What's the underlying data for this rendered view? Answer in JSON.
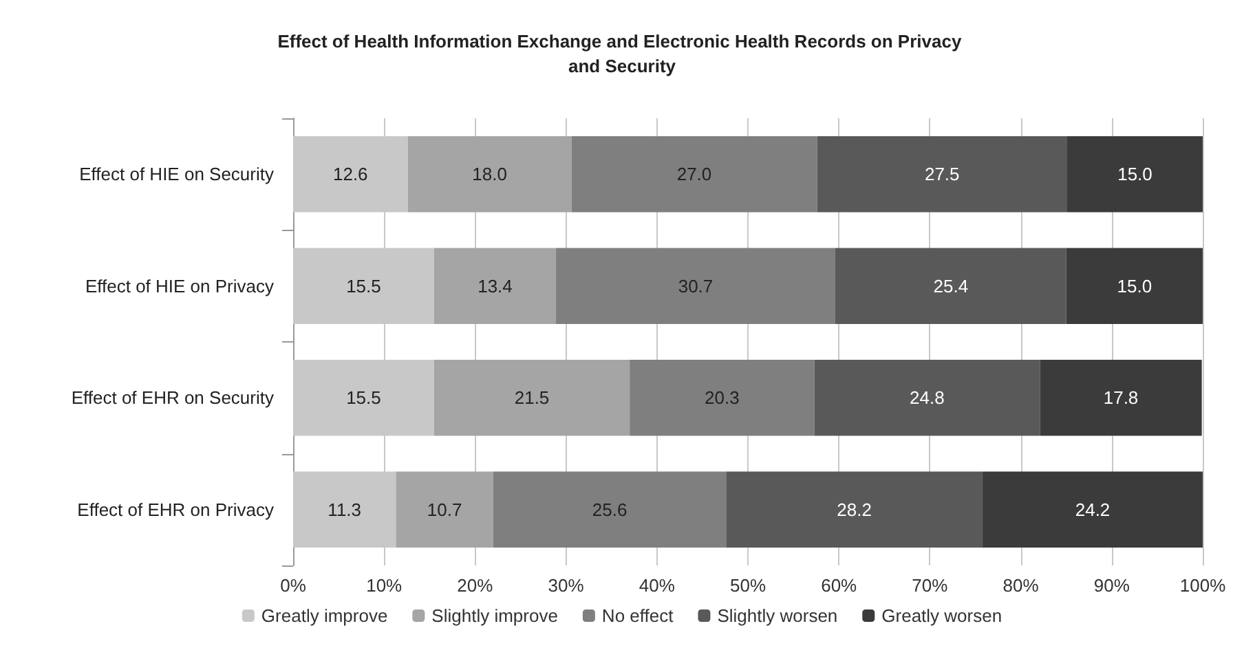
{
  "chart_data": {
    "type": "bar",
    "orientation": "horizontal",
    "stacked": true,
    "title": "Effect of Health Information Exchange and Electronic Health Records on Privacy and Security",
    "categories": [
      "Effect of HIE on Security",
      "Effect of HIE on Privacy",
      "Effect of EHR on Security",
      "Effect of EHR on Privacy"
    ],
    "series": [
      {
        "name": "Greatly improve",
        "color": "#c8c8c8",
        "values": [
          12.6,
          15.5,
          15.5,
          11.3
        ],
        "value_labels": [
          "12.6",
          "15.5",
          "15.5",
          "11.3"
        ]
      },
      {
        "name": "Slightly improve",
        "color": "#a5a5a5",
        "values": [
          18.0,
          13.4,
          21.5,
          10.7
        ],
        "value_labels": [
          "18.0",
          "13.4",
          "21.5",
          "10.7"
        ]
      },
      {
        "name": "No effect",
        "color": "#7f7f7f",
        "values": [
          27.0,
          30.7,
          20.3,
          25.6
        ],
        "value_labels": [
          "27.0",
          "30.7",
          "20.3",
          "25.6"
        ]
      },
      {
        "name": "Slightly worsen",
        "color": "#595959",
        "values": [
          27.5,
          25.4,
          24.8,
          28.2
        ],
        "value_labels": [
          "27.5",
          "25.4",
          "24.8",
          "28.2"
        ]
      },
      {
        "name": "Greatly worsen",
        "color": "#3b3b3b",
        "values": [
          15.0,
          15.0,
          17.8,
          24.2
        ],
        "value_labels": [
          "15.0",
          "15.0",
          "17.8",
          "24.2"
        ]
      }
    ],
    "xlim": [
      0,
      100
    ],
    "xticks": [
      {
        "value": 0,
        "label": "0%"
      },
      {
        "value": 10,
        "label": "10%"
      },
      {
        "value": 20,
        "label": "20%"
      },
      {
        "value": 30,
        "label": "30%"
      },
      {
        "value": 40,
        "label": "40%"
      },
      {
        "value": 50,
        "label": "50%"
      },
      {
        "value": 60,
        "label": "60%"
      },
      {
        "value": 70,
        "label": "70%"
      },
      {
        "value": 80,
        "label": "80%"
      },
      {
        "value": 90,
        "label": "90%"
      },
      {
        "value": 100,
        "label": "100%"
      }
    ],
    "grid": "x",
    "legend": "bottom"
  }
}
